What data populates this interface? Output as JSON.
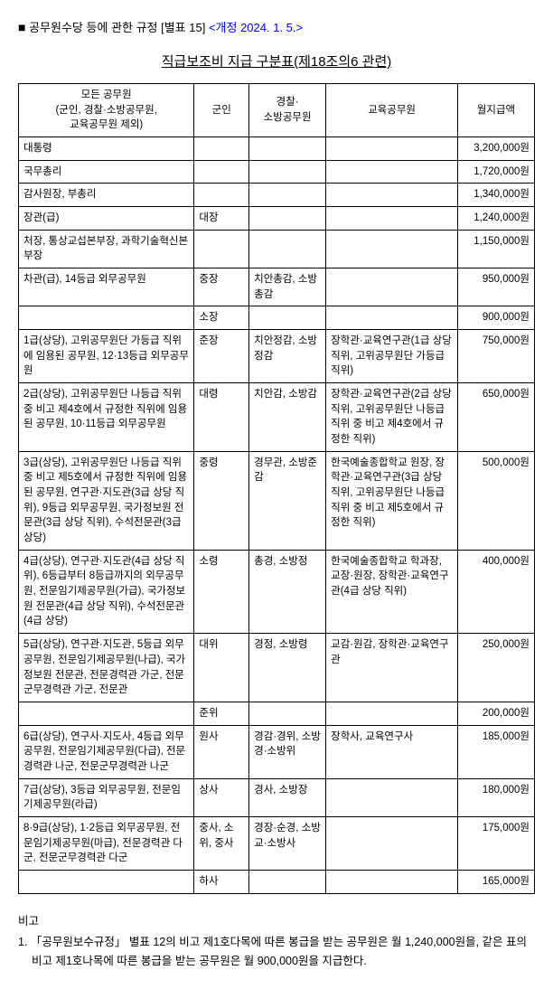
{
  "header": {
    "square": "■",
    "title_black": "공무원수당 등에 관한 규정 [별표 15]",
    "title_blue": "<개정 2024. 1. 5.>"
  },
  "doc_title": "직급보조비 지급 구분표(제18조의6 관련)",
  "table": {
    "head": {
      "c1": "모든 공무원\n(군인, 경찰·소방공무원,\n교육공무원 제외)",
      "c2": "군인",
      "c3": "경찰·\n소방공무원",
      "c4": "교육공무원",
      "c5": "월지급액"
    },
    "rows": [
      {
        "c1": "대통령",
        "c2": "",
        "c3": "",
        "c4": "",
        "c5": "3,200,000원"
      },
      {
        "c1": "국무총리",
        "c2": "",
        "c3": "",
        "c4": "",
        "c5": "1,720,000원"
      },
      {
        "c1": "감사원장, 부총리",
        "c2": "",
        "c3": "",
        "c4": "",
        "c5": "1,340,000원"
      },
      {
        "c1": "장관(급)",
        "c2": "대장",
        "c3": "",
        "c4": "",
        "c5": "1,240,000원"
      },
      {
        "c1": "처장, 통상교섭본부장, 과학기술혁신본부장",
        "c2": "",
        "c3": "",
        "c4": "",
        "c5": "1,150,000원"
      },
      {
        "c1": "차관(급), 14등급 외무공무원",
        "c2": "중장",
        "c3": "치안총감, 소방총감",
        "c4": "",
        "c5": "950,000원"
      },
      {
        "c1": "",
        "c2": "소장",
        "c3": "",
        "c4": "",
        "c5": "900,000원"
      },
      {
        "c1": "1급(상당), 고위공무원단 가등급 직위에 임용된 공무원, 12·13등급 외무공무원",
        "c2": "준장",
        "c3": "치안정감, 소방정감",
        "c4": "장학관·교육연구관(1급 상당 직위, 고위공무원단 가등급 직위)",
        "c5": "750,000원"
      },
      {
        "c1": "2급(상당), 고위공무원단 나등급 직위 중 비고 제4호에서 규정한 직위에 임용된 공무원, 10·11등급 외무공무원",
        "c2": "대령",
        "c3": "치안감, 소방감",
        "c4": "장학관·교육연구관(2급 상당 직위, 고위공무원단 나등급 직위 중 비고 제4호에서 규정한 직위)",
        "c5": "650,000원"
      },
      {
        "c1": "3급(상당), 고위공무원단 나등급 직위 중 비고 제5호에서 규정한 직위에 임용된 공무원, 연구관·지도관(3급 상당 직위), 9등급 외무공무원, 국가정보원 전문관(3급 상당 직위), 수석전문관(3급 상당)",
        "c2": "중령",
        "c3": "경무관, 소방준감",
        "c4": "한국예술종합학교 원장, 장학관·교육연구관(3급 상당 직위, 고위공무원단 나등급 직위 중 비고 제5호에서 규정한 직위)",
        "c5": "500,000원"
      },
      {
        "c1": "4급(상당), 연구관·지도관(4급 상당 직위), 6등급부터 8등급까지의 외무공무원, 전문임기제공무원(가급), 국가정보원 전문관(4급 상당 직위), 수석전문관(4급 상당)",
        "c2": "소령",
        "c3": "총경, 소방정",
        "c4": "한국예술종합학교 학과장, 교장·원장, 장학관·교육연구관(4급 상당 직위)",
        "c5": "400,000원"
      },
      {
        "c1": "5급(상당), 연구관·지도관, 5등급 외무공무원, 전문임기제공무원(나급), 국가정보원 전문관, 전문경력관 가군, 전문군무경력관 가군, 전문관",
        "c2": "대위",
        "c3": "경정, 소방령",
        "c4": "교감·원감, 장학관·교육연구관",
        "c5": "250,000원"
      },
      {
        "c1": "",
        "c2": "준위",
        "c3": "",
        "c4": "",
        "c5": "200,000원"
      },
      {
        "c1": "6급(상당), 연구사·지도사, 4등급 외무공무원, 전문임기제공무원(다급), 전문경력관 나군, 전문군무경력관 나군",
        "c2": "원사",
        "c3": "경감·경위, 소방경·소방위",
        "c4": "장학사, 교육연구사",
        "c5": "185,000원"
      },
      {
        "c1": "7급(상당), 3등급 외무공무원, 전문임기제공무원(라급)",
        "c2": "상사",
        "c3": "경사, 소방장",
        "c4": "",
        "c5": "180,000원"
      },
      {
        "c1": "8·9급(상당), 1·2등급 외무공무원, 전문임기제공무원(마급), 전문경력관 다군, 전문군무경력관 다군",
        "c2": "중사, 소위, 중사",
        "c3": "경장·순경, 소방교·소방사",
        "c4": "",
        "c5": "175,000원"
      },
      {
        "c1": "",
        "c2": "하사",
        "c3": "",
        "c4": "",
        "c5": "165,000원"
      }
    ]
  },
  "footnote": {
    "label": "비고",
    "item1": "1. 「공무원보수규정」 별표 12의 비고 제1호다목에 따른 봉급을 받는 공무원은 월 1,240,000원을, 같은 표의 비고 제1호나목에 따른 봉급을 받는 공무원은 월 900,000원을 지급한다."
  }
}
